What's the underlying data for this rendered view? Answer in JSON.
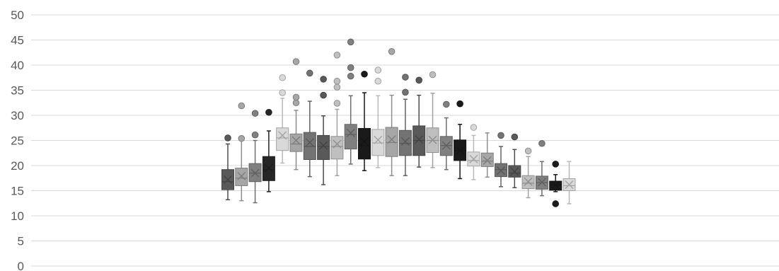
{
  "chart_data": {
    "type": "boxplot",
    "title": "",
    "xlabel": "",
    "ylabel": "",
    "ylim": [
      0,
      50
    ],
    "yticks": [
      0,
      5,
      10,
      15,
      20,
      25,
      30,
      35,
      40,
      45,
      50
    ],
    "ytick_labels": [
      "0",
      "5",
      "10",
      "15",
      "20",
      "25",
      "30",
      "35",
      "40",
      "45",
      "50"
    ],
    "grid": true,
    "legend": "none",
    "series": [
      {
        "min": 13.2,
        "q1": 15.2,
        "median": 16.8,
        "q3": 19.2,
        "max": 24.3,
        "mean": 17.2,
        "outliers": [
          25.5
        ],
        "color": "#595959"
      },
      {
        "min": 13.0,
        "q1": 16.0,
        "median": 17.5,
        "q3": 19.5,
        "max": 25.0,
        "mean": 17.9,
        "outliers": [
          25.4,
          31.9
        ],
        "color": "#a6a6a6"
      },
      {
        "min": 12.6,
        "q1": 16.8,
        "median": 18.5,
        "q3": 20.4,
        "max": 25.0,
        "mean": 18.5,
        "outliers": [
          26.1,
          30.4
        ],
        "color": "#808080"
      },
      {
        "min": 14.8,
        "q1": 17.0,
        "median": 19.2,
        "q3": 21.8,
        "max": 26.9,
        "mean": 19.5,
        "outliers": [
          30.6
        ],
        "color": "#262626"
      },
      {
        "min": 20.5,
        "q1": 23.0,
        "median": 25.5,
        "q3": 27.5,
        "max": 33.4,
        "mean": 26.0,
        "outliers": [
          34.5,
          37.5
        ],
        "color": "#d9d9d9"
      },
      {
        "min": 19.2,
        "q1": 22.8,
        "median": 24.3,
        "q3": 26.3,
        "max": 31.0,
        "mean": 25.0,
        "outliers": [
          32.5,
          33.6,
          40.7
        ],
        "color": "#a6a6a6"
      },
      {
        "min": 17.8,
        "q1": 21.2,
        "median": 23.8,
        "q3": 26.6,
        "max": 32.8,
        "mean": 24.6,
        "outliers": [
          38.4
        ],
        "color": "#737373"
      },
      {
        "min": 16.2,
        "q1": 21.2,
        "median": 23.8,
        "q3": 26.0,
        "max": 29.9,
        "mean": 24.0,
        "outliers": [
          34.0,
          37.2
        ],
        "color": "#595959"
      },
      {
        "min": 18.0,
        "q1": 21.3,
        "median": 23.8,
        "q3": 25.8,
        "max": 31.2,
        "mean": 24.3,
        "outliers": [
          32.4,
          35.6,
          36.8,
          42.0
        ],
        "color": "#bfbfbf"
      },
      {
        "min": 20.3,
        "q1": 23.3,
        "median": 26.2,
        "q3": 28.2,
        "max": 33.9,
        "mean": 26.5,
        "outliers": [
          37.8,
          39.5,
          44.6
        ],
        "color": "#808080"
      },
      {
        "min": 19.0,
        "q1": 21.3,
        "median": 24.0,
        "q3": 27.4,
        "max": 34.5,
        "mean": 24.8,
        "outliers": [
          38.2
        ],
        "color": "#1a1a1a"
      },
      {
        "min": 19.6,
        "q1": 22.0,
        "median": 24.5,
        "q3": 27.2,
        "max": 33.9,
        "mean": 25.1,
        "outliers": [
          36.8,
          39.0
        ],
        "color": "#d9d9d9"
      },
      {
        "min": 18.0,
        "q1": 21.8,
        "median": 24.6,
        "q3": 27.6,
        "max": 34.0,
        "mean": 25.2,
        "outliers": [
          42.7
        ],
        "color": "#a6a6a6"
      },
      {
        "min": 18.0,
        "q1": 22.0,
        "median": 24.4,
        "q3": 27.0,
        "max": 33.2,
        "mean": 24.8,
        "outliers": [
          34.6,
          37.6
        ],
        "color": "#737373"
      },
      {
        "min": 19.7,
        "q1": 22.0,
        "median": 25.0,
        "q3": 27.9,
        "max": 34.0,
        "mean": 25.2,
        "outliers": [
          37.0
        ],
        "color": "#595959"
      },
      {
        "min": 19.6,
        "q1": 22.6,
        "median": 25.0,
        "q3": 27.5,
        "max": 34.4,
        "mean": 25.1,
        "outliers": [
          38.1
        ],
        "color": "#bfbfbf"
      },
      {
        "min": 19.2,
        "q1": 22.0,
        "median": 24.0,
        "q3": 25.8,
        "max": 29.5,
        "mean": 24.0,
        "outliers": [
          32.2
        ],
        "color": "#808080"
      },
      {
        "min": 17.4,
        "q1": 21.0,
        "median": 23.0,
        "q3": 25.1,
        "max": 28.2,
        "mean": 23.0,
        "outliers": [
          32.3
        ],
        "color": "#1a1a1a"
      },
      {
        "min": 17.2,
        "q1": 19.9,
        "median": 21.0,
        "q3": 22.7,
        "max": 26.0,
        "mean": 21.3,
        "outliers": [
          27.6
        ],
        "color": "#d9d9d9"
      },
      {
        "min": 17.7,
        "q1": 19.8,
        "median": 20.9,
        "q3": 22.5,
        "max": 26.5,
        "mean": 21.0,
        "outliers": [],
        "color": "#a6a6a6"
      },
      {
        "min": 15.8,
        "q1": 17.8,
        "median": 19.2,
        "q3": 20.4,
        "max": 23.8,
        "mean": 19.0,
        "outliers": [
          26.0
        ],
        "color": "#737373"
      },
      {
        "min": 15.6,
        "q1": 17.7,
        "median": 18.5,
        "q3": 20.0,
        "max": 23.2,
        "mean": 18.8,
        "outliers": [
          25.7
        ],
        "color": "#595959"
      },
      {
        "min": 13.6,
        "q1": 15.4,
        "median": 16.5,
        "q3": 18.0,
        "max": 21.8,
        "mean": 16.8,
        "outliers": [
          22.9
        ],
        "color": "#bfbfbf"
      },
      {
        "min": 14.0,
        "q1": 15.3,
        "median": 16.6,
        "q3": 17.9,
        "max": 20.8,
        "mean": 16.7,
        "outliers": [
          24.4
        ],
        "color": "#808080"
      },
      {
        "min": 14.8,
        "q1": 15.1,
        "median": 16.2,
        "q3": 16.9,
        "max": 18.2,
        "mean": 16.1,
        "outliers": [
          12.4,
          20.3
        ],
        "color": "#1a1a1a"
      },
      {
        "min": 12.4,
        "q1": 15.0,
        "median": 16.0,
        "q3": 17.4,
        "max": 20.8,
        "mean": 16.2,
        "outliers": [],
        "color": "#d9d9d9"
      }
    ]
  }
}
